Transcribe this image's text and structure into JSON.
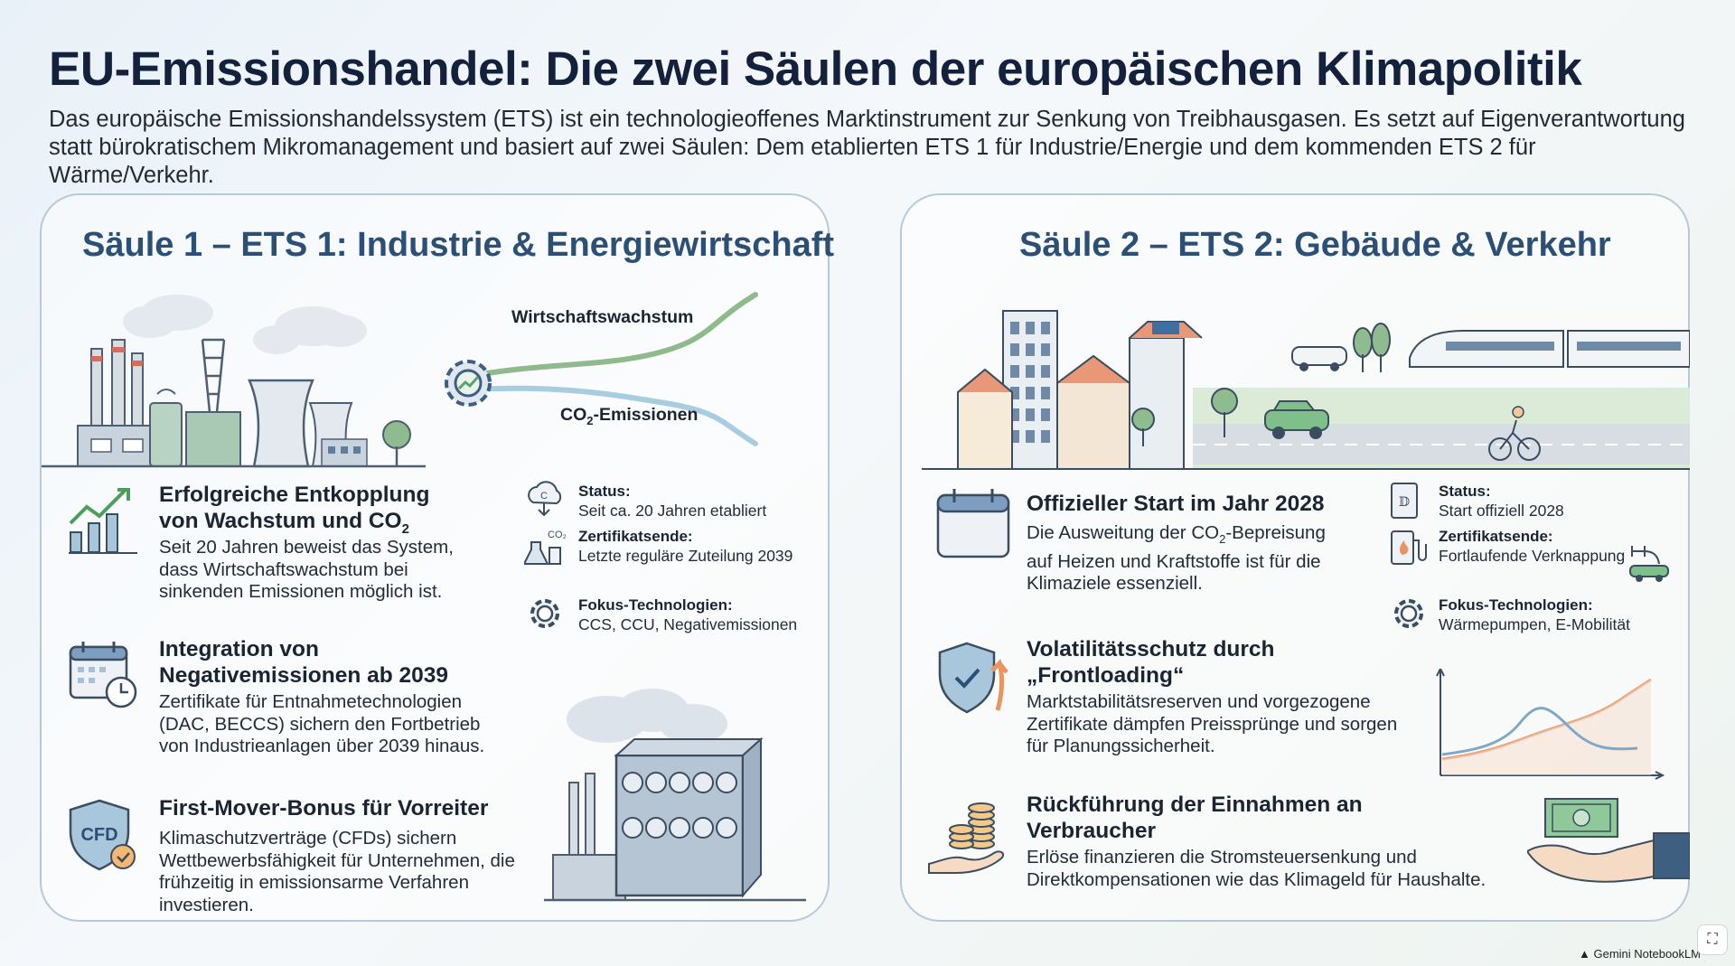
{
  "title": "EU-Emissionshandel: Die zwei Säulen der europäischen Klimapolitik",
  "intro": "Das europäische Emissionshandelssystem (ETS) ist ein technologieoffenes Marktinstrument zur Senkung von Treibhausgasen. Es setzt auf Eigenverantwortung statt bürokratischem Mikromanagement und basiert auf zwei Säulen: Dem etablierten ETS 1 für Industrie/Energie und dem kommenden ETS 2 für Wärme/Verkehr.",
  "pillar1": {
    "title": "Säule 1 – ETS 1: Industrie & Energiewirtschaft",
    "chart_labels": {
      "growth": "Wirtschaftswachstum",
      "emissions_prefix": "CO",
      "emissions_sub": "2",
      "emissions_suffix": "-Emissionen"
    },
    "items": [
      {
        "title_prefix": "Erfolgreiche Entkopplung von Wachstum und CO",
        "title_sub": "2",
        "text": "Seit 20 Jahren beweist das System, dass Wirtschaftswachstum bei sinkenden Emissionen möglich ist."
      },
      {
        "title": "Integration von Negativemissionen ab 2039",
        "text": "Zertifikate für Entnahmetechnologien (DAC, BECCS) sichern den Fortbetrieb von Industrieanlagen über 2039 hinaus."
      },
      {
        "title": "First-Mover-Bonus für Vorreiter",
        "text": "Klimaschutzverträge (CFDs) sichern Wettbewerbsfähigkeit für Unternehmen, die frühzeitig in emissionsarme Verfahren investieren.",
        "icon_text": "CFD"
      }
    ],
    "facts": [
      {
        "label": "Status:",
        "value": "Seit ca. 20 Jahren etabliert",
        "icon_text": "C"
      },
      {
        "label": "Zertifikatsende:",
        "value": "Letzte reguläre Zuteilung 2039",
        "icon_text": "CO₂"
      },
      {
        "label": "Fokus-Technologien:",
        "value": "CCS, CCU, Negativemissionen"
      }
    ]
  },
  "pillar2": {
    "title": "Säule 2 – ETS 2: Gebäude & Verkehr",
    "items": [
      {
        "title": "Offizieller Start im Jahr 2028",
        "text_prefix": "Die Ausweitung der CO",
        "text_sub": "2",
        "text_suffix": "-Bepreisung auf Heizen und Kraftstoffe ist für die Klimaziele essenziell."
      },
      {
        "title": "Volatilitätsschutz durch „Frontloading“",
        "text": "Marktstabilitätsreserven und vorgezogene Zertifikate dämpfen Preissprünge und sorgen für Planungssicherheit."
      },
      {
        "title": "Rückführung der Einnahmen an Verbraucher",
        "text": "Erlöse finanzieren die Stromsteuersenkung und Direktkompensationen wie das Klimageld für Haushalte."
      }
    ],
    "facts": [
      {
        "label": "Status:",
        "value": "Start offiziell 2028",
        "icon_text": "𝔻"
      },
      {
        "label": "Zertifikatsende:",
        "value": "Fortlaufende Verknappung"
      },
      {
        "label": "Fokus-Technologien:",
        "value": "Wärmepumpen, E-Mobilität"
      }
    ]
  },
  "footer": "Gemini NotebookLM",
  "colors": {
    "navy": "#14213d",
    "accent": "#2c4f75",
    "green": "#86b38a",
    "orange": "#e8a37a",
    "blue": "#9cc2d8"
  }
}
